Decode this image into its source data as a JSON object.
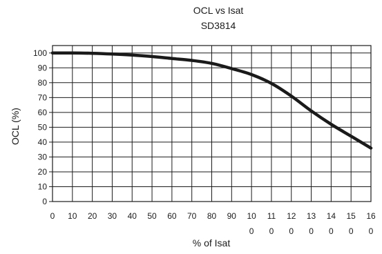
{
  "chart_data": {
    "type": "line",
    "title": "OCL vs Isat",
    "subtitle": "SD3814",
    "xlabel": "% of Isat",
    "ylabel": "OCL (%)",
    "xlim": [
      0,
      160
    ],
    "ylim": [
      0,
      105
    ],
    "x_ticks": [
      0,
      10,
      20,
      30,
      40,
      50,
      60,
      70,
      80,
      90,
      100,
      110,
      120,
      130,
      140,
      150,
      160
    ],
    "x_tick_labels": [
      [
        "0"
      ],
      [
        "10"
      ],
      [
        "20"
      ],
      [
        "30"
      ],
      [
        "40"
      ],
      [
        "50"
      ],
      [
        "60"
      ],
      [
        "70"
      ],
      [
        "80"
      ],
      [
        "90"
      ],
      [
        "10",
        "0"
      ],
      [
        "11",
        "0"
      ],
      [
        "12",
        "0"
      ],
      [
        "13",
        "0"
      ],
      [
        "14",
        "0"
      ],
      [
        "15",
        "0"
      ],
      [
        "16",
        "0"
      ]
    ],
    "y_ticks": [
      0,
      10,
      20,
      30,
      40,
      50,
      60,
      70,
      80,
      90,
      100
    ],
    "y_tick_labels": [
      "0",
      "10",
      "20",
      "30",
      "40",
      "50",
      "60",
      "70",
      "80",
      "90",
      "100"
    ],
    "grid": true,
    "series": [
      {
        "color": "#1a1a1a",
        "x": [
          0,
          10,
          20,
          30,
          40,
          50,
          60,
          70,
          80,
          90,
          100,
          110,
          120,
          130,
          140,
          150,
          160
        ],
        "y": [
          100,
          100,
          99.8,
          99.3,
          98.6,
          97.6,
          96.3,
          95,
          93,
          89.5,
          85.5,
          79.5,
          71,
          61,
          52,
          44,
          36
        ]
      }
    ]
  }
}
